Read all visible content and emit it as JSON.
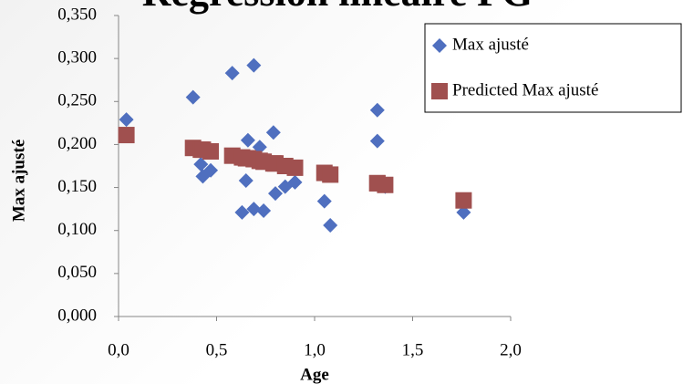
{
  "chart_data": {
    "type": "scatter",
    "title": "Régression linéaire PG",
    "x_label": "Age",
    "y_label": "Max ajusté",
    "x": [
      0.04,
      0.38,
      0.58,
      0.69,
      0.66,
      0.72,
      0.79,
      0.42,
      0.43,
      0.47,
      0.65,
      0.63,
      0.69,
      0.74,
      0.8,
      0.85,
      0.9,
      1.05,
      1.08,
      1.32,
      1.32,
      1.36,
      1.76
    ],
    "series": [
      {
        "name": "Max ajusté",
        "color": "#4f6fbf",
        "marker": "diamond",
        "values": [
          0.229,
          0.255,
          0.283,
          0.292,
          0.205,
          0.197,
          0.214,
          0.177,
          0.163,
          0.17,
          0.158,
          0.121,
          0.125,
          0.123,
          0.143,
          0.151,
          0.156,
          0.134,
          0.106,
          0.24,
          0.204,
          0.151,
          0.121
        ]
      },
      {
        "name": "Predicted Max ajusté",
        "color": "#a0504f",
        "marker": "square",
        "values": [
          0.211,
          0.196,
          0.187,
          0.183,
          0.184,
          0.181,
          0.178,
          0.194,
          0.194,
          0.192,
          0.184,
          0.185,
          0.183,
          0.18,
          0.178,
          0.175,
          0.173,
          0.167,
          0.165,
          0.155,
          0.155,
          0.153,
          0.135
        ]
      }
    ],
    "xlim": [
      0,
      2
    ],
    "ylim": [
      0,
      0.35
    ],
    "xticks": [
      {
        "value": 0,
        "label": "0,0"
      },
      {
        "value": 0.5,
        "label": "0,5"
      },
      {
        "value": 1,
        "label": "1,0"
      },
      {
        "value": 1.5,
        "label": "1,5"
      },
      {
        "value": 2,
        "label": "2,0"
      }
    ],
    "yticks": [
      {
        "value": 0,
        "label": "0,000"
      },
      {
        "value": 0.05,
        "label": "0,050"
      },
      {
        "value": 0.1,
        "label": "0,100"
      },
      {
        "value": 0.15,
        "label": "0,150"
      },
      {
        "value": 0.2,
        "label": "0,200"
      },
      {
        "value": 0.25,
        "label": "0,250"
      },
      {
        "value": 0.3,
        "label": "0,300"
      },
      {
        "value": 0.35,
        "label": "0,350"
      }
    ],
    "grid": false,
    "legend": "top-right"
  }
}
